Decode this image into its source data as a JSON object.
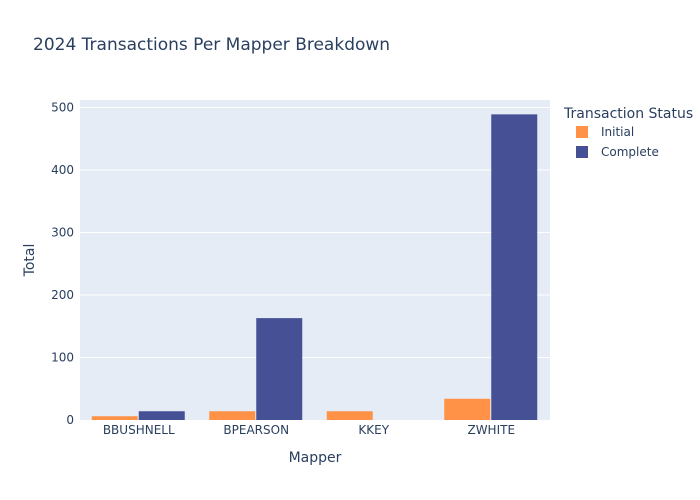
{
  "chart_data": {
    "type": "bar",
    "title": "2024 Transactions Per Mapper Breakdown",
    "xlabel": "Mapper",
    "ylabel": "Total",
    "categories": [
      "BBUSHNELL",
      "BPEARSON",
      "KKEY",
      "ZWHITE"
    ],
    "series": [
      {
        "name": "Initial",
        "values": [
          6,
          14,
          14,
          34
        ],
        "color": "#ff9246"
      },
      {
        "name": "Complete",
        "values": [
          14,
          163,
          0,
          489
        ],
        "color": "#455095"
      }
    ],
    "ylim": [
      0,
      512
    ],
    "yticks": [
      0,
      100,
      200,
      300,
      400,
      500
    ],
    "grid": true,
    "legend": {
      "title": "Transaction Status",
      "placement": "top-right"
    },
    "colors": {
      "plot_background": "#e5ecf6",
      "gridline": "#ffffff",
      "text": "#2a3f5f"
    }
  }
}
